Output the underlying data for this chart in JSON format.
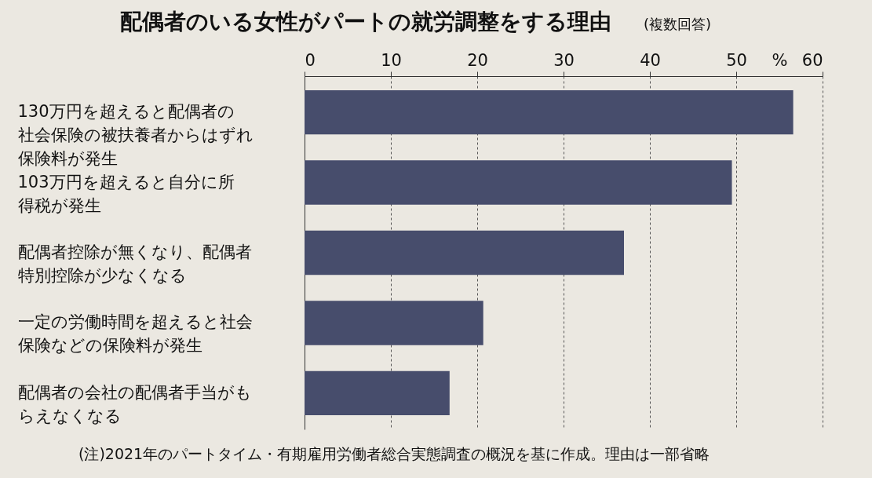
{
  "chart_data": {
    "type": "bar",
    "orientation": "horizontal",
    "title": "配偶者のいる女性がパートの就労調整をする理由",
    "subtitle": "(複数回答)",
    "xlabel": "%",
    "categories": [
      "130万円を超えると配偶者の社会保険の被扶養者からはずれ保険料が発生",
      "103万円を超えると自分に所得税が発生",
      "配偶者控除が無くなり、配偶者特別控除が少なくなる",
      "一定の労働時間を超えると社会保険などの保険料が発生",
      "配偶者の会社の配偶者手当がもらえなくなる"
    ],
    "values": [
      56.6,
      49.5,
      37.0,
      20.7,
      16.8
    ],
    "color": "#474d6c",
    "xlim": [
      0,
      60
    ],
    "xticks": [
      0,
      10,
      20,
      30,
      40,
      50,
      60
    ],
    "grid": "x",
    "annotations": [
      "(注)2021年のパートタイム・有期雇用労働者総合実態調査の概況を基に作成。理由は一部省略"
    ]
  }
}
